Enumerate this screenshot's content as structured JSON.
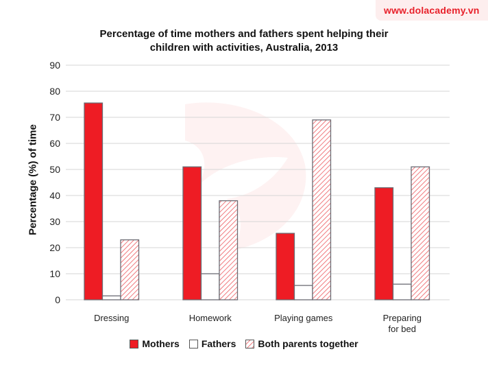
{
  "watermark": {
    "site": "www.dolacademy.vn",
    "badge_bg": "#fdeeee",
    "text_color": "#e8202a"
  },
  "chart_data": {
    "type": "bar",
    "title": "Percentage of time mothers and fathers spent helping their children with activities, Australia, 2013",
    "title_lines": [
      "Percentage of time mothers and fathers spent helping their",
      "children with activities, Australia, 2013"
    ],
    "xlabel": "",
    "ylabel": "Percentage (%) of time",
    "ylim": [
      0,
      90
    ],
    "yticks": [
      0,
      10,
      20,
      30,
      40,
      50,
      60,
      70,
      80,
      90
    ],
    "grid": true,
    "legend_position": "bottom",
    "categories": [
      "Dressing",
      "Homework",
      "Playing games",
      "Preparing for bed"
    ],
    "category_lines": [
      [
        "Dressing"
      ],
      [
        "Homework"
      ],
      [
        "Playing games"
      ],
      [
        "Preparing",
        "for bed"
      ]
    ],
    "series": [
      {
        "name": "Mothers",
        "style": "solid",
        "color": "#ee1c24",
        "values": [
          75.5,
          51,
          25.5,
          43
        ]
      },
      {
        "name": "Fathers",
        "style": "empty",
        "color": "#ffffff",
        "values": [
          1.5,
          10,
          5.5,
          6
        ]
      },
      {
        "name": "Both parents together",
        "style": "hatched",
        "color": "#ee1c24",
        "values": [
          23,
          38,
          69,
          51
        ]
      }
    ]
  },
  "legend": {
    "items": [
      "Mothers",
      "Fathers",
      "Both parents together"
    ]
  }
}
